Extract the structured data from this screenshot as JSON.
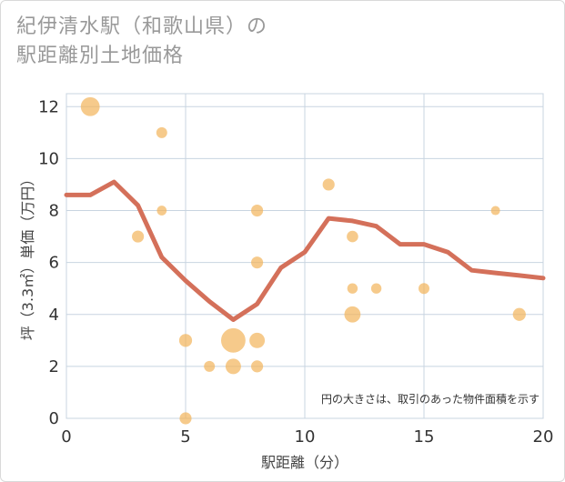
{
  "title": {
    "line1": "紀伊清水駅（和歌山県）の",
    "line2": "駅距離別土地価格"
  },
  "chart_data": {
    "type": "scatter",
    "xlabel": "駅距離（分）",
    "ylabel": "坪（3.3㎡）単価（万円）",
    "xlim": [
      0,
      20
    ],
    "ylim": [
      0,
      12.5
    ],
    "xticks": [
      0,
      5,
      10,
      15,
      20
    ],
    "yticks": [
      0,
      2,
      4,
      6,
      8,
      10,
      12
    ],
    "grid": true,
    "note": "円の大きさは、取引のあった物件面積を示す",
    "colors": {
      "bubble": "#f2b45a",
      "line": "#d4705a",
      "grid": "#c8d4e0"
    },
    "points": [
      {
        "x": 1,
        "y": 12,
        "size": 3
      },
      {
        "x": 4,
        "y": 11,
        "size": 1
      },
      {
        "x": 4,
        "y": 8,
        "size": 0.8
      },
      {
        "x": 3,
        "y": 7,
        "size": 1.2
      },
      {
        "x": 5,
        "y": 3,
        "size": 1.4
      },
      {
        "x": 5,
        "y": 0,
        "size": 1.2
      },
      {
        "x": 6,
        "y": 2,
        "size": 1
      },
      {
        "x": 7,
        "y": 3,
        "size": 5
      },
      {
        "x": 7,
        "y": 2,
        "size": 2
      },
      {
        "x": 8,
        "y": 3,
        "size": 2
      },
      {
        "x": 8,
        "y": 2,
        "size": 1.2
      },
      {
        "x": 8,
        "y": 6,
        "size": 1.2
      },
      {
        "x": 8,
        "y": 8,
        "size": 1.2
      },
      {
        "x": 11,
        "y": 9,
        "size": 1.2
      },
      {
        "x": 12,
        "y": 7,
        "size": 1.1
      },
      {
        "x": 12,
        "y": 5,
        "size": 0.9
      },
      {
        "x": 12,
        "y": 4,
        "size": 2.2
      },
      {
        "x": 13,
        "y": 5,
        "size": 0.9
      },
      {
        "x": 15,
        "y": 5,
        "size": 1
      },
      {
        "x": 18,
        "y": 8,
        "size": 0.7
      },
      {
        "x": 19,
        "y": 4,
        "size": 1.4
      }
    ],
    "trend": {
      "x": [
        0,
        1,
        2,
        3,
        4,
        5,
        6,
        7,
        8,
        9,
        10,
        11,
        12,
        13,
        14,
        15,
        16,
        17,
        18,
        19,
        20
      ],
      "y": [
        8.6,
        8.6,
        9.1,
        8.2,
        6.2,
        5.3,
        4.5,
        3.8,
        4.4,
        5.8,
        6.4,
        7.7,
        7.6,
        7.4,
        6.7,
        6.7,
        6.4,
        5.7,
        5.6,
        5.5,
        5.4
      ]
    }
  }
}
